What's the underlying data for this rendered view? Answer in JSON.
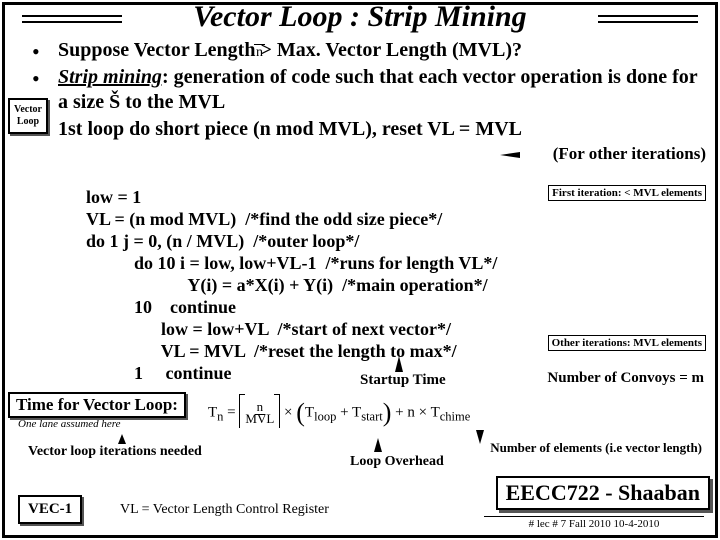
{
  "title": "Vector Loop : Strip Mining",
  "sidebox": {
    "l1": "Vector",
    "l2": "Loop"
  },
  "n_label": "n",
  "bullets": {
    "b1": "Suppose Vector Length > Max. Vector Length (MVL)?",
    "b2a": "Strip mining",
    "b2b": ": generation of code such that each vector operation is done for a size Š to the MVL",
    "b3": "1st loop do short piece (n mod MVL), reset VL = MVL"
  },
  "annots": {
    "for_other": "(For other iterations)",
    "first_iter": "First iteration: < MVL elements",
    "other_iter": "Other iterations: MVL elements",
    "startup": "Startup Time",
    "convoys": "Number of Convoys = m",
    "lane": "One lane assumed here",
    "iter": "Vector loop iterations needed",
    "loop_ovh": "Loop Overhead",
    "nelem": "Number of elements (i.e vector length)"
  },
  "code": {
    "l1": "low = 1",
    "l2": "VL = (n mod MVL)  /*find the odd size piece*/",
    "l3": "do 1 j = 0, (n / MVL)  /*outer loop*/",
    "l4": "do 10 i = low, low+VL-1  /*runs for length VL*/",
    "l5": "            Y(i) = a*X(i) + Y(i)  /*main operation*/",
    "l6_lab": "10",
    "l6": "continue",
    "l7": "low = low+VL  /*start of next vector*/",
    "l8": "VL = MVL  /*reset the length to max*/",
    "l9_lab": "1",
    "l9": "continue"
  },
  "timebox": "Time for Vector Loop:",
  "formula": {
    "lhs": "T",
    "sub": "n",
    "eq": "=",
    "frac_top": "n",
    "frac_bot": "MVL",
    "mul": "×",
    "pl": "(",
    "t1": "T",
    "t1s": "loop",
    "plus": "+",
    "t2": "T",
    "t2s": "start",
    "pr": ")",
    "plus2": "+",
    "nx": "n ×",
    "t3": "T",
    "t3s": "chime"
  },
  "vec1": "VEC-1",
  "vl_def": "VL = Vector Length Control Register",
  "course": "EECC722 - Shaaban",
  "lec": "#  lec # 7     Fall 2010    10-4-2010"
}
